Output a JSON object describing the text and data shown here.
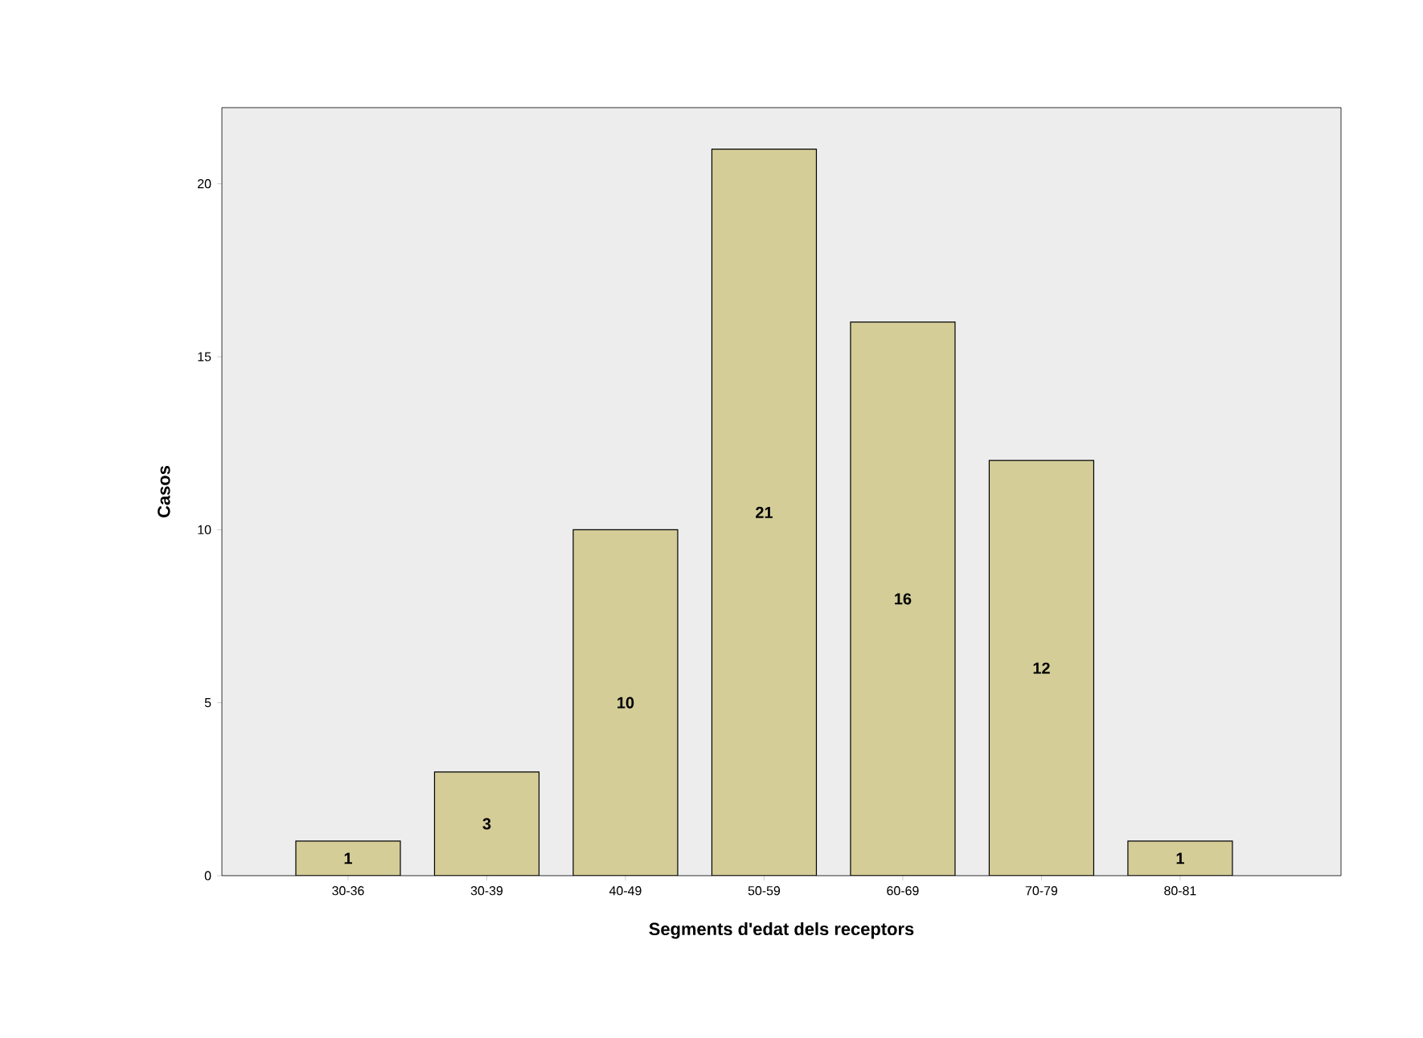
{
  "chart_data": {
    "type": "bar",
    "xlabel": "Segments d'edat dels receptors",
    "ylabel": "Casos",
    "categories": [
      "30-36",
      "30-39",
      "40-49",
      "50-59",
      "60-69",
      "70-79",
      "80-81"
    ],
    "values": [
      1,
      3,
      10,
      21,
      16,
      12,
      1
    ],
    "color": "#d4cd98",
    "ylim": [
      0,
      22.2
    ],
    "yticks": [
      0,
      5,
      10,
      15,
      20
    ],
    "data_labels": true
  }
}
